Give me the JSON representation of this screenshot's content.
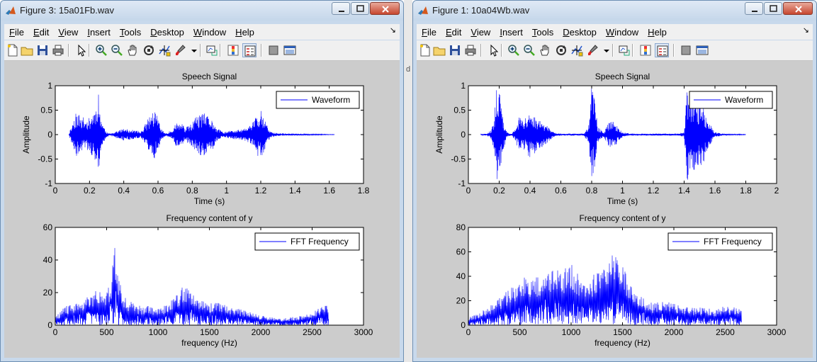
{
  "windows": [
    {
      "title": "Figure 3: 15a01Fb.wav",
      "menu": [
        "File",
        "Edit",
        "View",
        "Insert",
        "Tools",
        "Desktop",
        "Window",
        "Help"
      ],
      "top_plot": {
        "title": "Speech Signal",
        "xlabel": "Time (s)",
        "ylabel": "Amplitude",
        "legend": "Waveform",
        "xlim": [
          0,
          1.8
        ],
        "ylim": [
          -1,
          1
        ],
        "xticks": [
          "0",
          "0.2",
          "0.4",
          "0.6",
          "0.8",
          "1",
          "1.2",
          "1.4",
          "1.6",
          "1.8"
        ],
        "yticks": [
          "1",
          "0.5",
          "0",
          "-0.5",
          "-1"
        ]
      },
      "bottom_plot": {
        "title": "Frequency content of y",
        "xlabel": "frequency (Hz)",
        "legend": "FFT Frequency",
        "xlim": [
          0,
          3000
        ],
        "ylim": [
          0,
          60
        ],
        "xticks": [
          "0",
          "500",
          "1000",
          "1500",
          "2000",
          "2500",
          "3000"
        ],
        "yticks": [
          "60",
          "40",
          "20",
          "0"
        ]
      }
    },
    {
      "title": "Figure 1: 10a04Wb.wav",
      "menu": [
        "File",
        "Edit",
        "View",
        "Insert",
        "Tools",
        "Desktop",
        "Window",
        "Help"
      ],
      "top_plot": {
        "title": "Speech Signal",
        "xlabel": "Time (s)",
        "ylabel": "Amplitude",
        "legend": "Waveform",
        "xlim": [
          0,
          2
        ],
        "ylim": [
          -1,
          1
        ],
        "xticks": [
          "0",
          "0.2",
          "0.4",
          "0.6",
          "0.8",
          "1",
          "1.2",
          "1.4",
          "1.6",
          "1.8",
          "2"
        ],
        "yticks": [
          "1",
          "0.5",
          "0",
          "-0.5",
          "-1"
        ]
      },
      "bottom_plot": {
        "title": "Frequency content of y",
        "xlabel": "frequency (Hz)",
        "legend": "FFT Frequency",
        "xlim": [
          0,
          3000
        ],
        "ylim": [
          0,
          80
        ],
        "xticks": [
          "0",
          "500",
          "1000",
          "1500",
          "2000",
          "2500",
          "3000"
        ],
        "yticks": [
          "80",
          "60",
          "40",
          "20",
          "0"
        ]
      }
    }
  ],
  "toolbar_icons": [
    "new-file-icon",
    "open-folder-icon",
    "save-icon",
    "print-icon",
    "pointer-icon",
    "zoom-in-icon",
    "zoom-out-icon",
    "pan-hand-icon",
    "rotate-3d-icon",
    "data-cursor-icon",
    "brush-icon",
    "brush-dropdown-icon",
    "link-plot-icon",
    "colorbar-icon",
    "legend-icon",
    "hide-plot-tools-icon",
    "show-plot-tools-icon"
  ],
  "colors": {
    "line": "#0000ff",
    "figure_bg": "#cccccc",
    "axes_bg": "#ffffff",
    "menu_bg": "#f0f0f0",
    "title_bar": "#c8d9ec"
  },
  "chart_data": [
    {
      "type": "line",
      "title": "Speech Signal",
      "xlabel": "Time (s)",
      "ylabel": "Amplitude",
      "xlim": [
        0,
        1.8
      ],
      "ylim": [
        -1,
        1
      ],
      "series": [
        {
          "name": "Waveform",
          "x": [
            0.08,
            0.1,
            0.12,
            0.15,
            0.18,
            0.2,
            0.24,
            0.25,
            0.26,
            0.28,
            0.3,
            0.32,
            0.36,
            0.4,
            0.44,
            0.48,
            0.5,
            0.53,
            0.56,
            0.58,
            0.6,
            0.62,
            0.64,
            0.66,
            0.68,
            0.7,
            0.72,
            0.74,
            0.76,
            0.78,
            0.8,
            0.82,
            0.84,
            0.86,
            0.88,
            0.9,
            0.92,
            0.94,
            0.98,
            1.02,
            1.06,
            1.1,
            1.14,
            1.16,
            1.18,
            1.2,
            1.22,
            1.24,
            1.26,
            1.3,
            1.35,
            1.4,
            1.45,
            1.5,
            1.55,
            1.6,
            1.63
          ],
          "amplitude_envelope": [
            0.02,
            0.25,
            0.45,
            0.4,
            0.3,
            0.35,
            0.6,
            0.98,
            0.5,
            0.2,
            0.05,
            0.02,
            0.08,
            0.12,
            0.1,
            0.08,
            0.06,
            0.25,
            0.45,
            0.5,
            0.35,
            0.12,
            0.03,
            0.05,
            0.1,
            0.22,
            0.26,
            0.22,
            0.15,
            0.18,
            0.25,
            0.35,
            0.4,
            0.45,
            0.42,
            0.35,
            0.3,
            0.15,
            0.05,
            0.08,
            0.1,
            0.12,
            0.2,
            0.3,
            0.45,
            0.5,
            0.35,
            0.15,
            0.06,
            0.03,
            0.02,
            0.02,
            0.015,
            0.01,
            0.01,
            0.005,
            0.005
          ]
        }
      ]
    },
    {
      "type": "line",
      "title": "Frequency content of y",
      "xlabel": "frequency (Hz)",
      "xlim": [
        0,
        3000
      ],
      "ylim": [
        0,
        60
      ],
      "series": [
        {
          "name": "FFT Frequency",
          "x": [
            0,
            100,
            200,
            300,
            400,
            500,
            550,
            580,
            600,
            650,
            700,
            800,
            900,
            1000,
            1100,
            1200,
            1250,
            1300,
            1400,
            1500,
            1600,
            1700,
            1800,
            1900,
            2000,
            2100,
            2200,
            2300,
            2400,
            2500,
            2600,
            2660
          ],
          "y_max": [
            5,
            12,
            13,
            18,
            22,
            20,
            30,
            54,
            34,
            22,
            16,
            12,
            12,
            10,
            14,
            20,
            26,
            22,
            18,
            14,
            14,
            12,
            10,
            8,
            6,
            5,
            4,
            5,
            6,
            8,
            12,
            12
          ]
        }
      ]
    },
    {
      "type": "line",
      "title": "Speech Signal",
      "xlabel": "Time (s)",
      "ylabel": "Amplitude",
      "xlim": [
        0,
        2
      ],
      "ylim": [
        -1,
        1
      ],
      "series": [
        {
          "name": "Waveform",
          "x": [
            0.08,
            0.12,
            0.15,
            0.17,
            0.18,
            0.2,
            0.22,
            0.25,
            0.28,
            0.3,
            0.33,
            0.36,
            0.4,
            0.44,
            0.48,
            0.52,
            0.55,
            0.6,
            0.65,
            0.7,
            0.75,
            0.78,
            0.8,
            0.82,
            0.84,
            0.88,
            0.9,
            0.93,
            0.96,
            1.0,
            1.05,
            1.1,
            1.15,
            1.2,
            1.25,
            1.3,
            1.35,
            1.4,
            1.42,
            1.45,
            1.48,
            1.5,
            1.52,
            1.55,
            1.6,
            1.65,
            1.7,
            1.75,
            1.8
          ],
          "amplitude_envelope": [
            0.01,
            0.02,
            0.1,
            0.4,
            0.95,
            0.98,
            0.4,
            0.05,
            0.02,
            0.1,
            0.35,
            0.3,
            0.5,
            0.35,
            0.25,
            0.15,
            0.05,
            0.02,
            0.02,
            0.02,
            0.02,
            0.2,
            0.98,
            0.7,
            0.15,
            0.05,
            0.2,
            0.3,
            0.2,
            0.05,
            0.02,
            0.02,
            0.02,
            0.02,
            0.02,
            0.02,
            0.02,
            0.05,
            0.98,
            0.7,
            0.75,
            0.6,
            0.7,
            0.3,
            0.05,
            0.02,
            0.01,
            0.01,
            0.005
          ]
        }
      ]
    },
    {
      "type": "line",
      "title": "Frequency content of y",
      "xlabel": "frequency (Hz)",
      "xlim": [
        0,
        3000
      ],
      "ylim": [
        0,
        80
      ],
      "series": [
        {
          "name": "FFT Frequency",
          "x": [
            0,
            100,
            200,
            300,
            400,
            500,
            550,
            600,
            700,
            800,
            900,
            1000,
            1050,
            1100,
            1150,
            1200,
            1250,
            1300,
            1350,
            1400,
            1450,
            1500,
            1550,
            1600,
            1700,
            1800,
            1900,
            2000,
            2100,
            2200,
            2300,
            2400,
            2500,
            2600,
            2660
          ],
          "y_max": [
            6,
            10,
            15,
            22,
            30,
            35,
            40,
            38,
            42,
            48,
            44,
            50,
            45,
            35,
            38,
            42,
            44,
            46,
            55,
            60,
            58,
            50,
            40,
            30,
            22,
            18,
            20,
            18,
            16,
            14,
            15,
            12,
            16,
            15,
            12
          ]
        }
      ]
    }
  ]
}
